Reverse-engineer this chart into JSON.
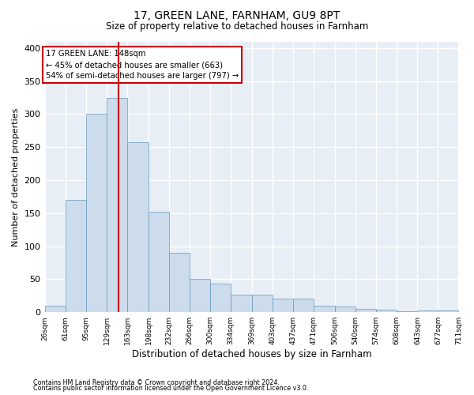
{
  "title1": "17, GREEN LANE, FARNHAM, GU9 8PT",
  "title2": "Size of property relative to detached houses in Farnham",
  "xlabel": "Distribution of detached houses by size in Farnham",
  "ylabel": "Number of detached properties",
  "bar_color": "#ccdcec",
  "bar_edge_color": "#6699bb",
  "background_color": "#e8eef5",
  "grid_color": "#ffffff",
  "red_line_x": 148,
  "annotation_line1": "17 GREEN LANE: 148sqm",
  "annotation_line2": "← 45% of detached houses are smaller (663)",
  "annotation_line3": "54% of semi-detached houses are larger (797) →",
  "bin_edges": [
    26,
    61,
    95,
    129,
    163,
    198,
    232,
    266,
    300,
    334,
    369,
    403,
    437,
    471,
    506,
    540,
    574,
    608,
    643,
    677,
    711
  ],
  "bin_heights": [
    10,
    170,
    300,
    325,
    258,
    152,
    90,
    50,
    43,
    27,
    27,
    20,
    20,
    10,
    9,
    5,
    4,
    1,
    3,
    3
  ],
  "tick_labels": [
    "26sqm",
    "61sqm",
    "95sqm",
    "129sqm",
    "163sqm",
    "198sqm",
    "232sqm",
    "266sqm",
    "300sqm",
    "334sqm",
    "369sqm",
    "403sqm",
    "437sqm",
    "471sqm",
    "506sqm",
    "540sqm",
    "574sqm",
    "608sqm",
    "643sqm",
    "677sqm",
    "711sqm"
  ],
  "yticks": [
    0,
    50,
    100,
    150,
    200,
    250,
    300,
    350,
    400
  ],
  "footnote1": "Contains HM Land Registry data © Crown copyright and database right 2024.",
  "footnote2": "Contains public sector information licensed under the Open Government Licence v3.0."
}
